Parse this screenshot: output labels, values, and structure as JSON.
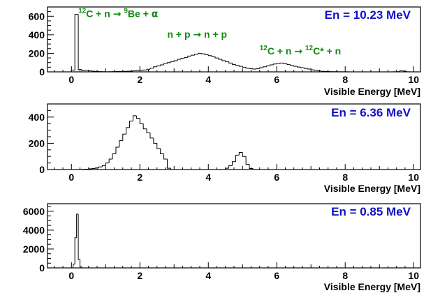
{
  "chart_data": [
    {
      "type": "histogram",
      "energy_label": "En = 10.23 MeV",
      "xlabel": "Visible Energy [MeV]",
      "xlim": [
        -0.7,
        10.2
      ],
      "ylim": [
        0,
        700
      ],
      "xticks": [
        0,
        2,
        4,
        6,
        8,
        10
      ],
      "yticks": [
        0,
        200,
        400,
        600
      ],
      "annotations": [
        {
          "id": "carbon-alpha",
          "parts": [
            {
              "t": "12",
              "sup": true
            },
            {
              "t": "C + n "
            },
            {
              "t": "→",
              "sym": true
            },
            {
              "t": " "
            },
            {
              "t": "9",
              "sup": true
            },
            {
              "t": "Be + "
            },
            {
              "t": "α",
              "sym": true
            }
          ],
          "at": [
            0.2,
            590
          ]
        },
        {
          "id": "elastic-np",
          "parts": [
            {
              "t": "n + p "
            },
            {
              "t": "→",
              "sym": true
            },
            {
              "t": " n + p"
            }
          ],
          "at": [
            2.8,
            370
          ]
        },
        {
          "id": "carbon-excited",
          "parts": [
            {
              "t": "12",
              "sup": true
            },
            {
              "t": "C + n "
            },
            {
              "t": "→",
              "sym": true
            },
            {
              "t": " "
            },
            {
              "t": "12",
              "sup": true
            },
            {
              "t": "C* + n"
            }
          ],
          "at": [
            5.5,
            190
          ]
        }
      ],
      "bin_width": 0.1,
      "bins": [
        [
          0.0,
          20
        ],
        [
          0.1,
          620
        ],
        [
          0.2,
          25
        ],
        [
          0.3,
          12
        ],
        [
          0.4,
          15
        ],
        [
          0.5,
          10
        ],
        [
          0.6,
          8
        ],
        [
          0.7,
          4
        ],
        [
          0.8,
          3
        ],
        [
          0.9,
          2
        ],
        [
          1.0,
          1
        ],
        [
          1.1,
          2
        ],
        [
          1.2,
          3
        ],
        [
          1.3,
          4
        ],
        [
          1.4,
          5
        ],
        [
          1.5,
          6
        ],
        [
          1.6,
          7
        ],
        [
          1.7,
          8
        ],
        [
          1.8,
          12
        ],
        [
          1.9,
          14
        ],
        [
          2.0,
          16
        ],
        [
          2.1,
          20
        ],
        [
          2.2,
          28
        ],
        [
          2.3,
          40
        ],
        [
          2.4,
          55
        ],
        [
          2.5,
          65
        ],
        [
          2.6,
          75
        ],
        [
          2.7,
          90
        ],
        [
          2.8,
          100
        ],
        [
          2.9,
          110
        ],
        [
          3.0,
          120
        ],
        [
          3.1,
          135
        ],
        [
          3.2,
          145
        ],
        [
          3.3,
          155
        ],
        [
          3.4,
          170
        ],
        [
          3.5,
          180
        ],
        [
          3.6,
          190
        ],
        [
          3.7,
          200
        ],
        [
          3.8,
          195
        ],
        [
          3.9,
          185
        ],
        [
          4.0,
          175
        ],
        [
          4.1,
          165
        ],
        [
          4.2,
          150
        ],
        [
          4.3,
          135
        ],
        [
          4.4,
          120
        ],
        [
          4.5,
          110
        ],
        [
          4.6,
          95
        ],
        [
          4.7,
          80
        ],
        [
          4.8,
          70
        ],
        [
          4.9,
          60
        ],
        [
          5.0,
          50
        ],
        [
          5.1,
          40
        ],
        [
          5.2,
          35
        ],
        [
          5.3,
          30
        ],
        [
          5.4,
          35
        ],
        [
          5.5,
          45
        ],
        [
          5.6,
          55
        ],
        [
          5.7,
          65
        ],
        [
          5.8,
          75
        ],
        [
          5.9,
          85
        ],
        [
          6.0,
          90
        ],
        [
          6.1,
          95
        ],
        [
          6.2,
          88
        ],
        [
          6.3,
          78
        ],
        [
          6.4,
          68
        ],
        [
          6.5,
          60
        ],
        [
          6.6,
          52
        ],
        [
          6.7,
          45
        ],
        [
          6.8,
          38
        ],
        [
          6.9,
          30
        ],
        [
          7.0,
          22
        ],
        [
          7.1,
          15
        ],
        [
          7.2,
          10
        ],
        [
          7.3,
          6
        ],
        [
          7.4,
          4
        ],
        [
          7.5,
          3
        ],
        [
          7.6,
          2
        ],
        [
          7.7,
          2
        ],
        [
          7.8,
          1
        ],
        [
          7.9,
          1
        ],
        [
          8.0,
          1
        ],
        [
          8.1,
          0
        ],
        [
          8.2,
          0
        ],
        [
          8.3,
          0
        ],
        [
          8.4,
          0
        ],
        [
          8.5,
          0
        ],
        [
          8.6,
          0
        ],
        [
          8.7,
          0
        ],
        [
          8.8,
          0
        ],
        [
          8.9,
          0
        ],
        [
          9.0,
          0
        ],
        [
          9.1,
          0
        ],
        [
          9.2,
          0
        ],
        [
          9.3,
          0
        ],
        [
          9.4,
          1
        ],
        [
          9.5,
          2
        ],
        [
          9.6,
          12
        ],
        [
          9.7,
          4
        ],
        [
          9.8,
          1
        ],
        [
          9.9,
          0
        ]
      ]
    },
    {
      "type": "histogram",
      "energy_label": "En = 6.36 MeV",
      "xlabel": "Visible Energy [MeV]",
      "xlim": [
        -0.7,
        10.2
      ],
      "ylim": [
        0,
        500
      ],
      "xticks": [
        0,
        2,
        4,
        6,
        8,
        10
      ],
      "yticks": [
        0,
        200,
        400
      ],
      "bin_width": 0.1,
      "bins": [
        [
          0.3,
          2
        ],
        [
          0.4,
          3
        ],
        [
          0.5,
          5
        ],
        [
          0.6,
          8
        ],
        [
          0.7,
          12
        ],
        [
          0.8,
          20
        ],
        [
          0.9,
          30
        ],
        [
          1.0,
          50
        ],
        [
          1.1,
          80
        ],
        [
          1.2,
          120
        ],
        [
          1.3,
          170
        ],
        [
          1.4,
          220
        ],
        [
          1.5,
          270
        ],
        [
          1.6,
          320
        ],
        [
          1.7,
          370
        ],
        [
          1.8,
          410
        ],
        [
          1.9,
          390
        ],
        [
          2.0,
          350
        ],
        [
          2.1,
          310
        ],
        [
          2.2,
          280
        ],
        [
          2.3,
          240
        ],
        [
          2.4,
          200
        ],
        [
          2.5,
          160
        ],
        [
          2.6,
          120
        ],
        [
          2.7,
          80
        ],
        [
          2.8,
          10
        ],
        [
          4.5,
          10
        ],
        [
          4.6,
          30
        ],
        [
          4.7,
          60
        ],
        [
          4.8,
          110
        ],
        [
          4.9,
          130
        ],
        [
          5.0,
          100
        ],
        [
          5.1,
          40
        ],
        [
          5.2,
          8
        ]
      ]
    },
    {
      "type": "histogram",
      "energy_label": "En = 0.85 MeV",
      "xlabel": "Visible Energy [MeV]",
      "xlim": [
        -0.7,
        10.2
      ],
      "ylim": [
        0,
        6800
      ],
      "xticks": [
        0,
        2,
        4,
        6,
        8,
        10
      ],
      "yticks": [
        0,
        2000,
        4000,
        6000
      ],
      "bin_width": 0.05,
      "bins": [
        [
          0.05,
          400
        ],
        [
          0.1,
          3200
        ],
        [
          0.15,
          5700
        ],
        [
          0.2,
          900
        ],
        [
          0.25,
          100
        ]
      ]
    }
  ]
}
